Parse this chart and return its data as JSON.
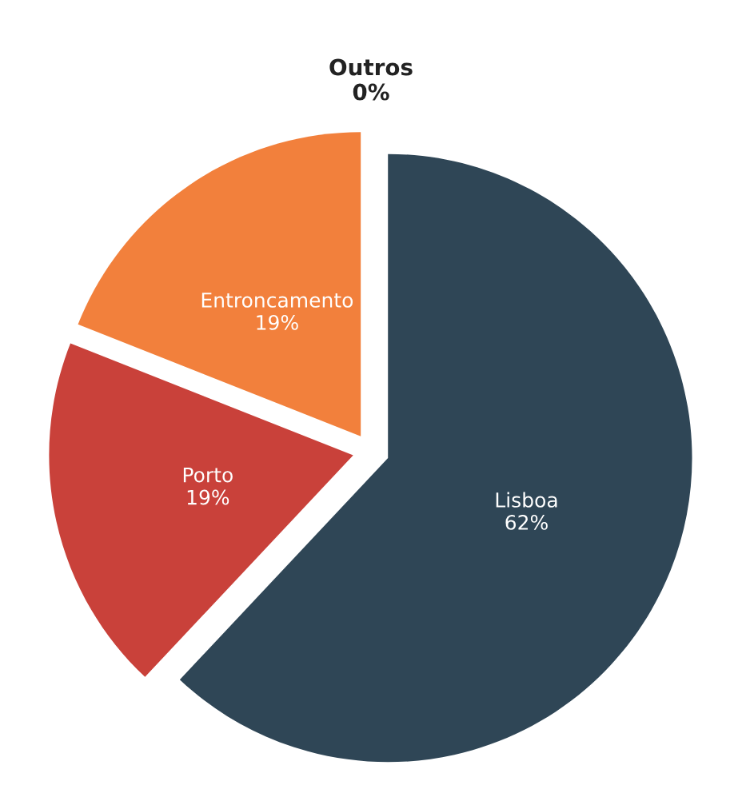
{
  "chart_data": {
    "type": "pie",
    "categories": [
      "Lisboa",
      "Porto",
      "Entroncamento",
      "Outros"
    ],
    "values": [
      62,
      19,
      19,
      0
    ],
    "value_labels": [
      "62%",
      "19%",
      "19%",
      "0%"
    ],
    "colors": [
      "#2f4656",
      "#c9413a",
      "#f2803c",
      "#7a7a7a"
    ]
  }
}
